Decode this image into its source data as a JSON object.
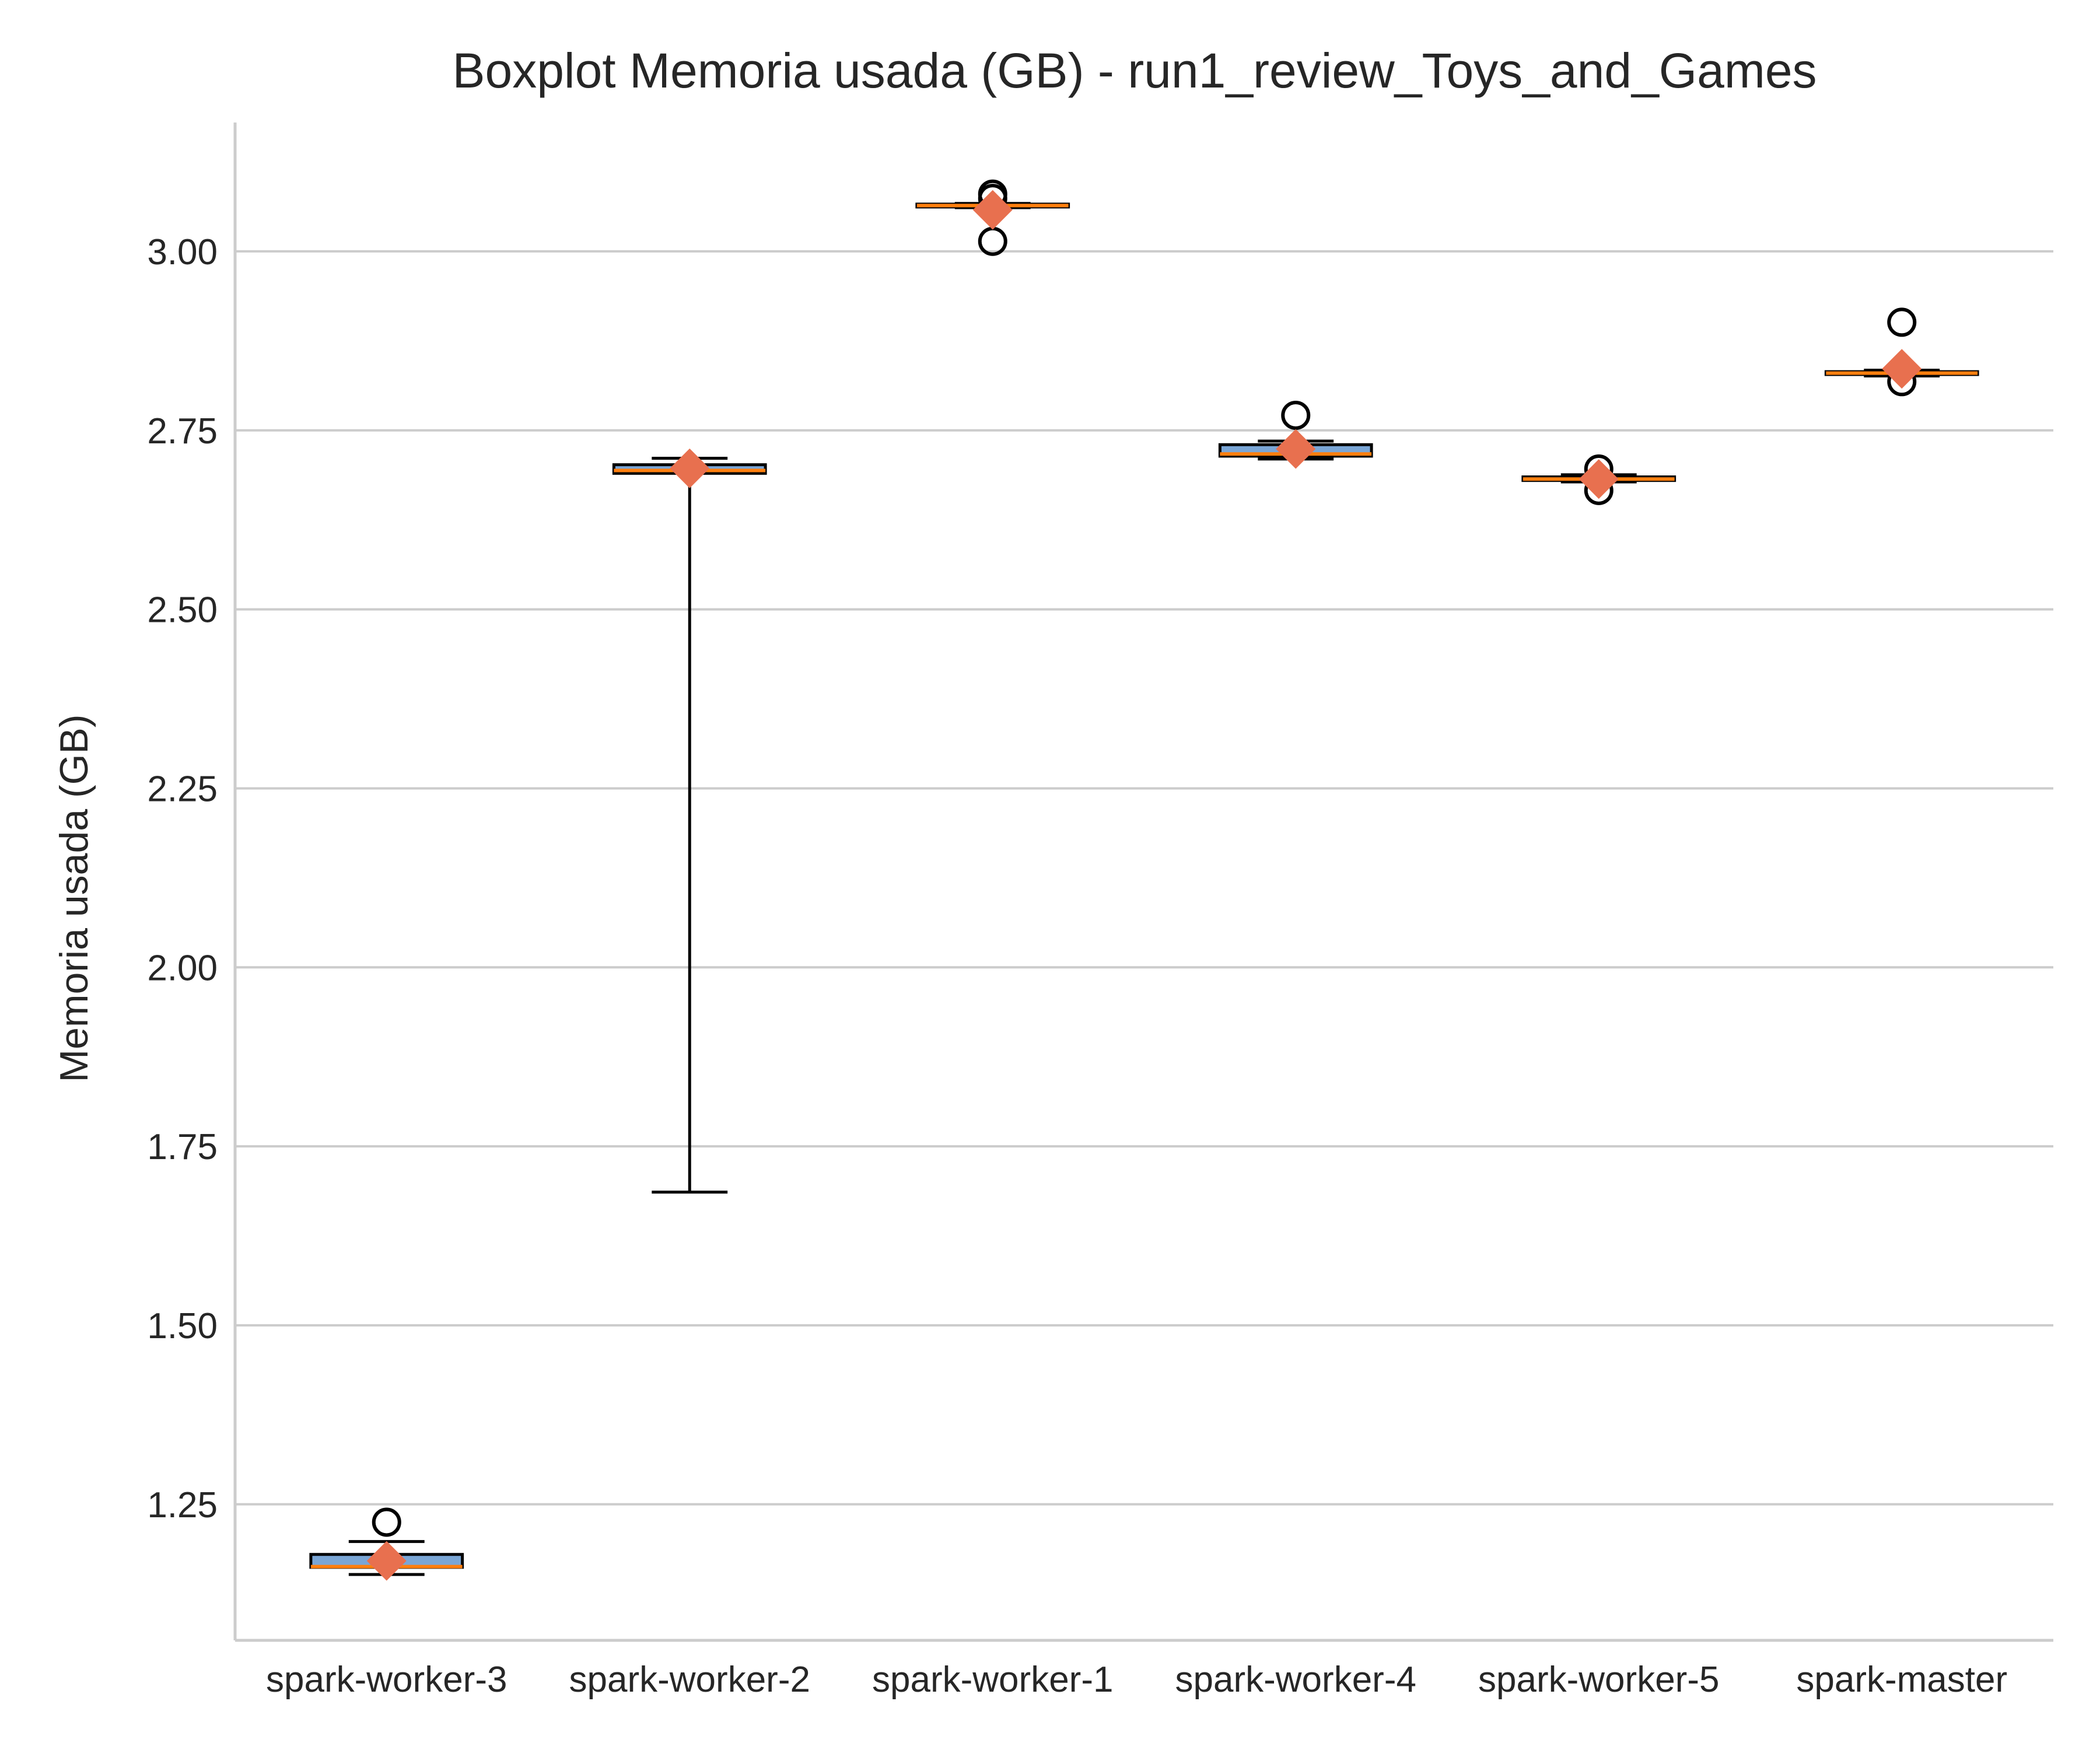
{
  "chart_data": {
    "type": "boxplot",
    "title": "Boxplot Memoria usada (GB) - run1_review_Toys_and_Games",
    "xlabel": "",
    "ylabel": "Memoria usada (GB)",
    "ylim": [
      1.06,
      3.18
    ],
    "yticks": [
      1.25,
      1.5,
      1.75,
      2.0,
      2.25,
      2.5,
      2.75,
      3.0
    ],
    "ytick_labels": [
      "1.25",
      "1.50",
      "1.75",
      "2.00",
      "2.25",
      "2.50",
      "2.75",
      "3.00"
    ],
    "grid": "horizontal",
    "categories": [
      "spark-worker-3",
      "spark-worker-2",
      "spark-worker-1",
      "spark-worker-4",
      "spark-worker-5",
      "spark-master"
    ],
    "boxes": [
      {
        "category": "spark-worker-3",
        "whisker_low": 1.152,
        "q1": 1.162,
        "median": 1.163,
        "q3": 1.18,
        "whisker_high": 1.198,
        "mean": 1.171,
        "outliers": [
          1.225
        ]
      },
      {
        "category": "spark-worker-2",
        "whisker_low": 1.686,
        "q1": 2.69,
        "median": 2.694,
        "q3": 2.702,
        "whisker_high": 2.711,
        "mean": 2.697,
        "outliers": []
      },
      {
        "category": "spark-worker-1",
        "whisker_low": 3.061,
        "q1": 3.062,
        "median": 3.064,
        "q3": 3.066,
        "whisker_high": 3.067,
        "mean": 3.058,
        "outliers": [
          3.014,
          3.074,
          3.08
        ]
      },
      {
        "category": "spark-worker-4",
        "whisker_low": 2.71,
        "q1": 2.714,
        "median": 2.717,
        "q3": 2.73,
        "whisker_high": 2.735,
        "mean": 2.724,
        "outliers": [
          2.771
        ]
      },
      {
        "category": "spark-worker-5",
        "whisker_low": 2.678,
        "q1": 2.68,
        "median": 2.682,
        "q3": 2.685,
        "whisker_high": 2.688,
        "mean": 2.682,
        "outliers": [
          2.666,
          2.696
        ]
      },
      {
        "category": "spark-master",
        "whisker_low": 2.826,
        "q1": 2.828,
        "median": 2.83,
        "q3": 2.832,
        "whisker_high": 2.834,
        "mean": 2.836,
        "outliers": [
          2.818,
          2.901
        ]
      }
    ],
    "colors": {
      "box_fill": "#7aa6d6",
      "median": "#ff7f0e",
      "mean_marker": "#e8704f",
      "grid": "#cccccc",
      "axis": "#cccccc"
    }
  }
}
